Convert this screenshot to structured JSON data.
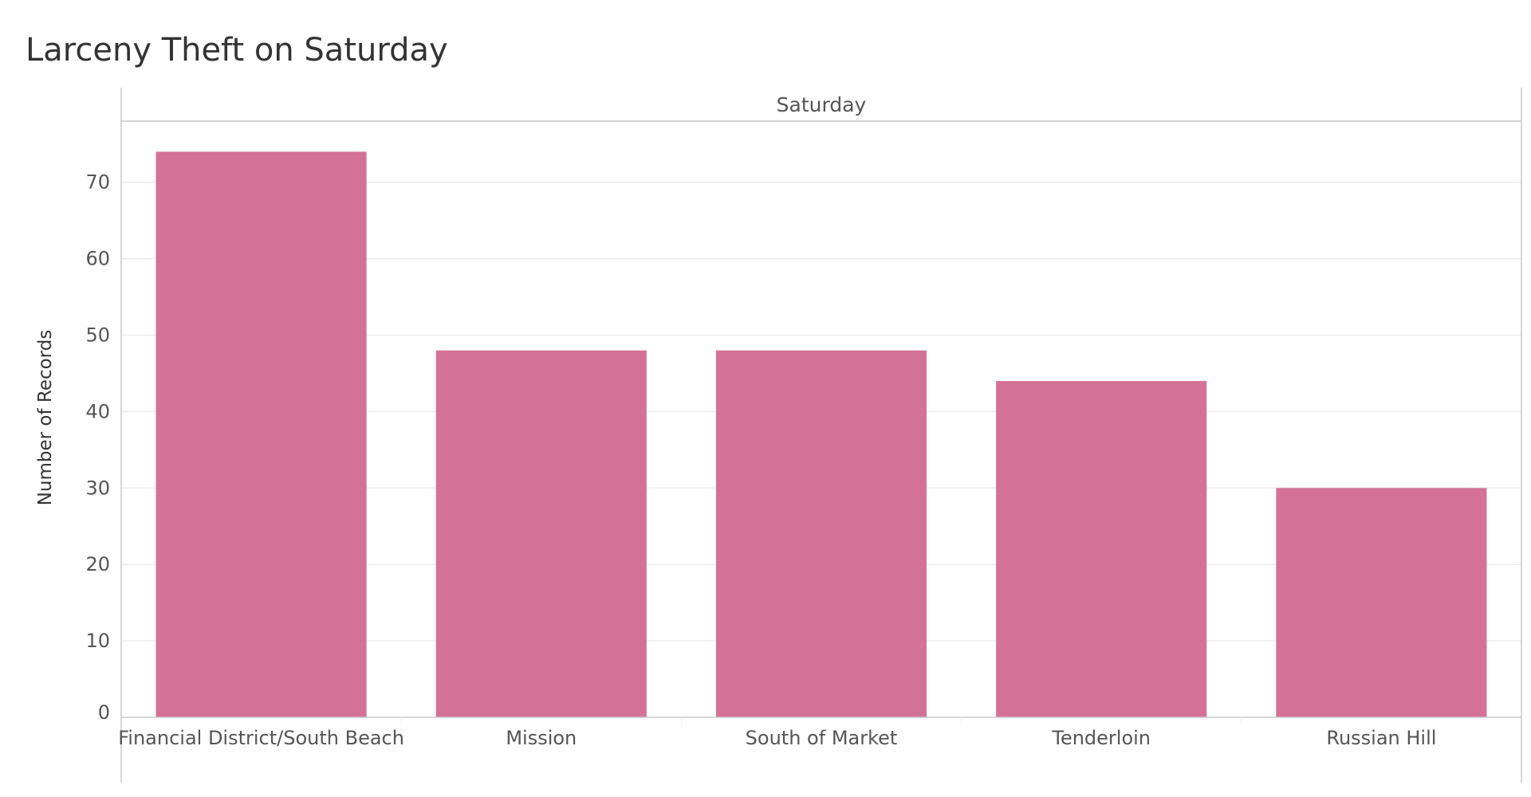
{
  "chart_data": {
    "type": "bar",
    "title": "Larceny Theft on Saturday",
    "panel_header": "Saturday",
    "xlabel": "",
    "ylabel": "Number of Records",
    "categories": [
      "Financial District/South Beach",
      "Mission",
      "South of Market",
      "Tenderloin",
      "Russian Hill"
    ],
    "values": [
      74,
      48,
      48,
      44,
      30
    ],
    "ylim": [
      0,
      78
    ],
    "yticks": [
      0,
      10,
      20,
      30,
      40,
      50,
      60,
      70
    ],
    "grid": true,
    "legend": "none"
  },
  "colors": {
    "bar": "#d37295",
    "grid": "#ececec",
    "axis": "#c8c8c8",
    "text": "#555555",
    "title": "#333333"
  }
}
